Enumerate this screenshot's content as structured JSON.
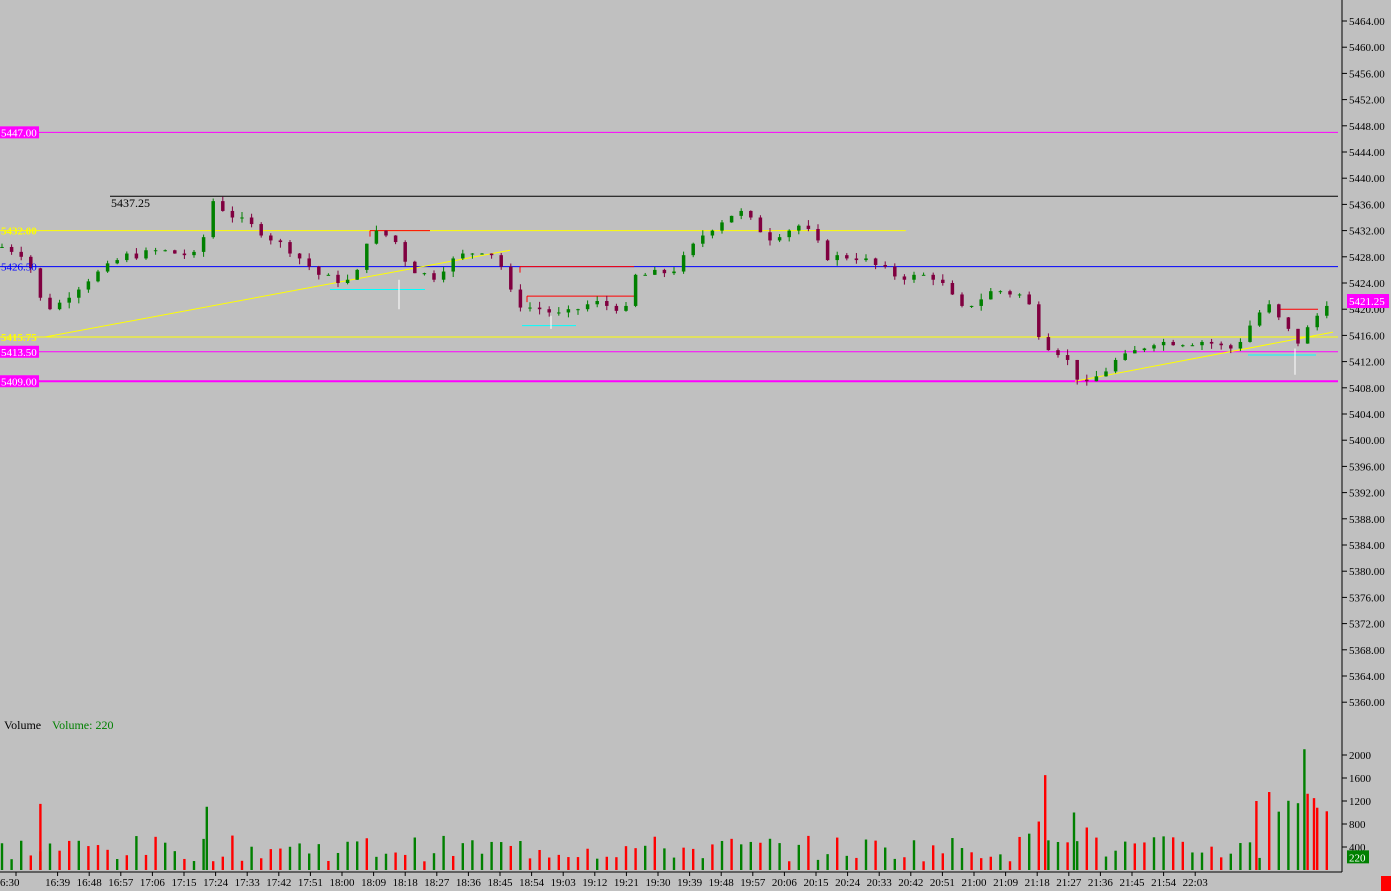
{
  "colors": {
    "background": "#c0c0c0",
    "up_candle": "#008000",
    "down_candle": "#800040",
    "volume_up": "#008000",
    "volume_down": "#ff0000",
    "magenta_level": "#ff00ff",
    "yellow_level": "#ffff00",
    "blue_level": "#0000ff",
    "black_level": "#000000",
    "red_box": "#ff0000",
    "cyan_mark": "#00ffff",
    "trendline": "#ffff00"
  },
  "chart_data": [
    {
      "type": "candlestick",
      "ylim": [
        5356,
        5468
      ],
      "y_ticks": [
        "5464.00",
        "5460.00",
        "5456.00",
        "5452.00",
        "5448.00",
        "5444.00",
        "5440.00",
        "5436.00",
        "5432.00",
        "5428.00",
        "5424.00",
        "5420.00",
        "5416.00",
        "5412.00",
        "5408.00",
        "5404.00",
        "5400.00",
        "5396.00",
        "5392.00",
        "5388.00",
        "5384.00",
        "5380.00",
        "5376.00",
        "5372.00",
        "5368.00",
        "5364.00",
        "5360.00"
      ],
      "x_ticks": [
        "6:30",
        "16:39",
        "16:48",
        "16:57",
        "17:06",
        "17:15",
        "17:24",
        "17:33",
        "17:42",
        "17:51",
        "18:00",
        "18:09",
        "18:18",
        "18:27",
        "18:36",
        "18:45",
        "18:54",
        "19:03",
        "19:12",
        "19:21",
        "19:30",
        "19:39",
        "19:48",
        "19:57",
        "20:06",
        "20:15",
        "20:24",
        "20:33",
        "20:42",
        "20:51",
        "21:00",
        "21:09",
        "21:18",
        "21:27",
        "21:36",
        "21:45",
        "21:54",
        "22:03"
      ],
      "price_levels": [
        {
          "label": "5447.00",
          "value": 5447.0,
          "color": "magenta",
          "style": "thin",
          "label_side": "left"
        },
        {
          "label": "5437.25",
          "value": 5437.25,
          "color": "black",
          "style": "thin",
          "label_side": "above-left"
        },
        {
          "label": "5432.00",
          "value": 5432.0,
          "color": "yellow",
          "style": "thin",
          "label_side": "left",
          "x_end": "20:42"
        },
        {
          "label": "5426.50",
          "value": 5426.5,
          "color": "blue",
          "style": "thin",
          "label_side": "left"
        },
        {
          "label": "5415.75",
          "value": 5415.75,
          "color": "yellow",
          "style": "thin",
          "label_side": "left"
        },
        {
          "label": "5413.50",
          "value": 5413.5,
          "color": "magenta",
          "style": "thin",
          "label_side": "left"
        },
        {
          "label": "5409.00",
          "value": 5409.0,
          "color": "magenta",
          "style": "thick",
          "label_side": "left"
        }
      ],
      "last_price": {
        "label": "5421.25",
        "value": 5421.25
      },
      "candles": []
    },
    {
      "type": "bar",
      "title": "Volume",
      "legend": "Volume: 220",
      "ylim": [
        0,
        2200
      ],
      "y_ticks": [
        "2000",
        "1600",
        "1200",
        "800",
        "400"
      ],
      "last_value_label": "220",
      "values": []
    }
  ]
}
